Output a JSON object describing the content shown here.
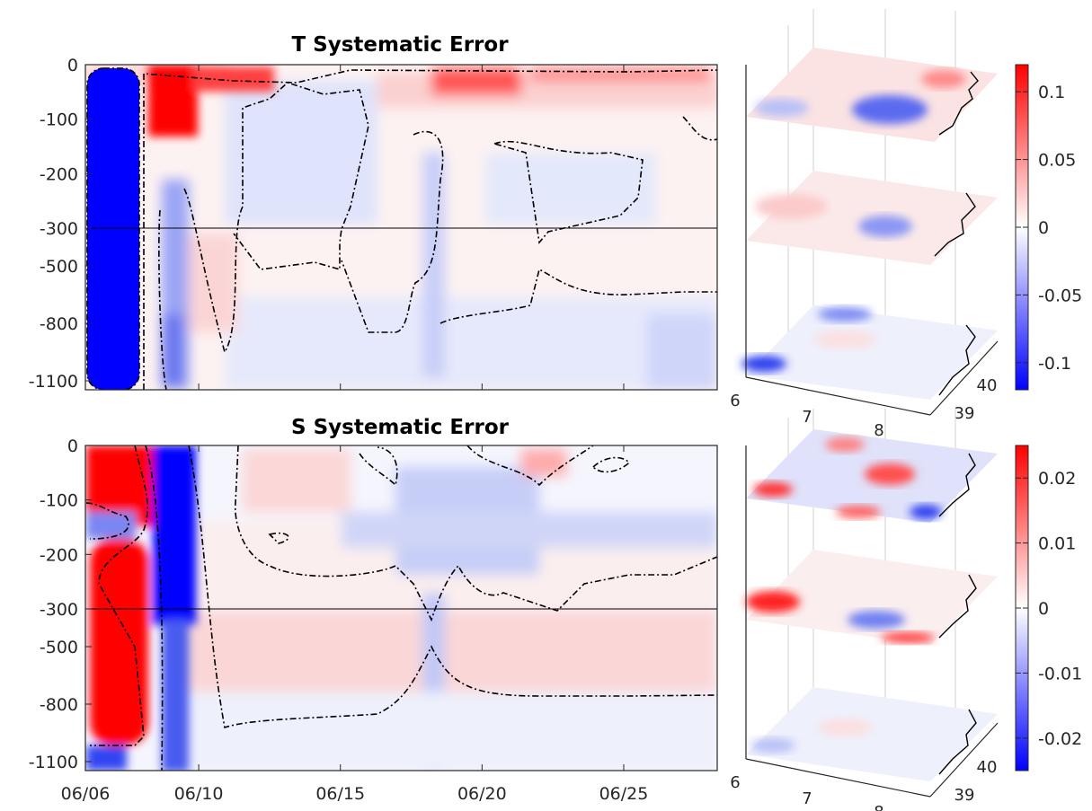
{
  "chart_data": [
    {
      "type": "heatmap",
      "title": "T Systematic Error",
      "xlabel": "",
      "ylabel": "",
      "x_tick_labels": [
        "06/06",
        "06/10",
        "06/15",
        "06/20",
        "06/25"
      ],
      "x_tick_days": [
        6,
        10,
        15,
        20,
        25
      ],
      "xlim_days": [
        6,
        28.3
      ],
      "y_tick_labels": [
        "0",
        "-100",
        "-200",
        "-300",
        "-500",
        "-800",
        "-1100"
      ],
      "y_axis_note": "upper 0 to -300 linear, lower -300 to -1100 linear (broken axis)",
      "color_range": [
        -0.12,
        0.12
      ],
      "zero_contour": "dash-dot",
      "features": [
        {
          "day_from": 6.0,
          "day_to": 7.9,
          "depth_from": 0,
          "depth_to": -1100,
          "value": -0.12
        },
        {
          "day_from": 8.2,
          "day_to": 9.5,
          "depth_from": 0,
          "depth_to": -150,
          "value": 0.11
        },
        {
          "day_from": 8.8,
          "day_to": 9.6,
          "depth_from": -300,
          "depth_to": -1100,
          "value": -0.06
        },
        {
          "day_from": 18.5,
          "day_to": 21.5,
          "depth_from": -10,
          "depth_to": -60,
          "value": 0.06
        },
        {
          "day_from": 12.0,
          "day_to": 15.0,
          "depth_from": -50,
          "depth_to": -250,
          "value": -0.02
        },
        {
          "day_from": 9.5,
          "day_to": 11.5,
          "depth_from": -300,
          "depth_to": -800,
          "value": 0.03
        },
        {
          "day_from": 16.0,
          "day_to": 28.0,
          "depth_from": -800,
          "depth_to": -1100,
          "value": -0.03
        }
      ]
    },
    {
      "type": "heatmap",
      "title": "S Systematic Error",
      "xlabel": "",
      "ylabel": "",
      "x_tick_labels": [
        "06/06",
        "06/10",
        "06/15",
        "06/20",
        "06/25"
      ],
      "x_tick_days": [
        6,
        10,
        15,
        20,
        25
      ],
      "xlim_days": [
        6,
        28.3
      ],
      "y_tick_labels": [
        "0",
        "-100",
        "-200",
        "-300",
        "-500",
        "-800",
        "-1100"
      ],
      "y_axis_note": "upper 0 to -300 linear, lower -300 to -1100 linear (broken axis)",
      "color_range": [
        -0.025,
        0.025
      ],
      "zero_contour": "dash-dot",
      "features": [
        {
          "day_from": 6.0,
          "day_to": 8.2,
          "depth_from": 0,
          "depth_to": -1000,
          "value": 0.025
        },
        {
          "day_from": 8.6,
          "day_to": 9.8,
          "depth_from": 0,
          "depth_to": -1100,
          "value": -0.025
        },
        {
          "day_from": 10.0,
          "day_to": 14.0,
          "depth_from": -300,
          "depth_to": -800,
          "value": 0.006
        },
        {
          "day_from": 19.0,
          "day_to": 28.0,
          "depth_from": -300,
          "depth_to": -700,
          "value": 0.007
        },
        {
          "day_from": 17.0,
          "day_to": 22.0,
          "depth_from": -20,
          "depth_to": -200,
          "value": -0.008
        }
      ]
    },
    {
      "type": "heatmap",
      "title": "",
      "description_layers": 3,
      "x_tick_labels": [
        "6",
        "7",
        "8"
      ],
      "y_tick_labels": [
        "39",
        "40"
      ],
      "color_range": [
        -0.12,
        0.12
      ]
    },
    {
      "type": "heatmap",
      "title": "",
      "description_layers": 3,
      "x_tick_labels": [
        "6",
        "7",
        "8"
      ],
      "y_tick_labels": [
        "39",
        "40"
      ],
      "color_range": [
        -0.025,
        0.025
      ]
    }
  ],
  "colorbars": [
    {
      "ticks": [
        0.1,
        0.05,
        0,
        -0.05,
        -0.1
      ],
      "labels": [
        "0.1",
        "0.05",
        "0",
        "-0.05",
        "-0.1"
      ],
      "range": [
        -0.12,
        0.12
      ]
    },
    {
      "ticks": [
        0.02,
        0.01,
        0,
        -0.01,
        -0.02
      ],
      "labels": [
        "0.02",
        "0.01",
        "0",
        "-0.01",
        "-0.02"
      ],
      "range": [
        -0.025,
        0.025
      ]
    }
  ],
  "colors": {
    "min": "#0000ff",
    "mid": "#ffffff",
    "max": "#ff0000",
    "contour": "#000000"
  }
}
